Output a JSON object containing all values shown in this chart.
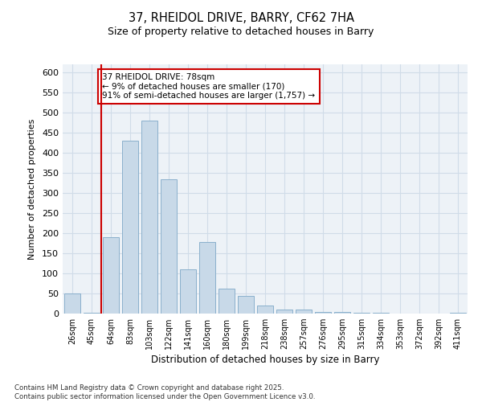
{
  "title1": "37, RHEIDOL DRIVE, BARRY, CF62 7HA",
  "title2": "Size of property relative to detached houses in Barry",
  "xlabel": "Distribution of detached houses by size in Barry",
  "ylabel": "Number of detached properties",
  "categories": [
    "26sqm",
    "45sqm",
    "64sqm",
    "83sqm",
    "103sqm",
    "122sqm",
    "141sqm",
    "160sqm",
    "180sqm",
    "199sqm",
    "218sqm",
    "238sqm",
    "257sqm",
    "276sqm",
    "295sqm",
    "315sqm",
    "334sqm",
    "353sqm",
    "372sqm",
    "392sqm",
    "411sqm"
  ],
  "values": [
    50,
    3,
    190,
    430,
    480,
    335,
    110,
    178,
    62,
    45,
    20,
    10,
    10,
    5,
    5,
    3,
    2,
    1,
    1,
    1,
    3
  ],
  "bar_color": "#c8d9e8",
  "bar_edge_color": "#8ab0cc",
  "grid_color": "#d0dce8",
  "bg_color": "#edf2f7",
  "vline_color": "#cc0000",
  "vline_x_index": 2,
  "annotation_text": "37 RHEIDOL DRIVE: 78sqm\n← 9% of detached houses are smaller (170)\n91% of semi-detached houses are larger (1,757) →",
  "annotation_box_color": "#ffffff",
  "annotation_box_edge": "#cc0000",
  "footer": "Contains HM Land Registry data © Crown copyright and database right 2025.\nContains public sector information licensed under the Open Government Licence v3.0.",
  "ylim": [
    0,
    620
  ],
  "yticks": [
    0,
    50,
    100,
    150,
    200,
    250,
    300,
    350,
    400,
    450,
    500,
    550,
    600
  ]
}
